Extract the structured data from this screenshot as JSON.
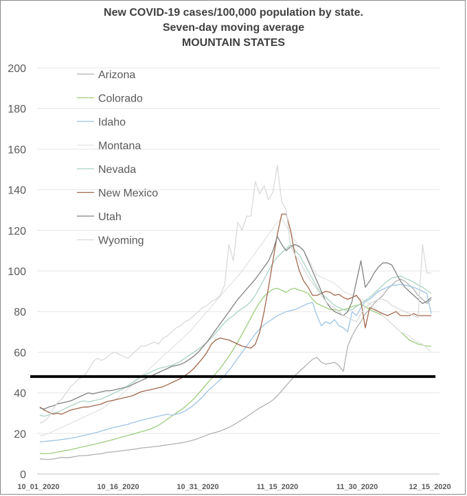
{
  "chart_data": {
    "type": "line",
    "title": [
      "New COVID-19 cases/100,000 population by state.",
      "Seven-day moving average",
      "MOUNTAIN STATES"
    ],
    "xlabel": "",
    "ylabel": "",
    "ylim": [
      0,
      200
    ],
    "yticks": [
      0,
      20,
      40,
      60,
      80,
      100,
      120,
      140,
      160,
      180,
      200
    ],
    "xticks": [
      "10_01_2020",
      "10_16_2020",
      "10_31_2020",
      "11_15_2020",
      "11_30_2020",
      "12_15_2020"
    ],
    "grid": true,
    "legend_position": "top-left",
    "reference_line": 48,
    "series": [
      {
        "name": "Arizona",
        "color": "#b0b0b0",
        "values": [
          7.5,
          7.3,
          7.2,
          7.4,
          7.8,
          8.2,
          8.0,
          8.2,
          8.6,
          9.0,
          9.0,
          9.2,
          9.6,
          9.8,
          10.0,
          10.6,
          10.8,
          11.0,
          11.3,
          11.6,
          11.8,
          12.1,
          12.4,
          12.8,
          13.0,
          13.2,
          13.5,
          13.7,
          14.1,
          14.4,
          14.7,
          15.0,
          15.3,
          15.7,
          16.2,
          16.8,
          17.5,
          18.3,
          19.2,
          20.0,
          20.5,
          21.2,
          22.0,
          23.0,
          24.2,
          25.5,
          26.8,
          28.2,
          29.7,
          31.2,
          32.6,
          33.8,
          35.0,
          36.5,
          38.5,
          41.0,
          43.5,
          46.0,
          48.5,
          50.5,
          52.5,
          54.5,
          56.5,
          57.5,
          55.0,
          54.2,
          54.5,
          55.0,
          53.5,
          50.5,
          63.0,
          68.0,
          72.0,
          75.0,
          79.0,
          81.0,
          84.0,
          86.0,
          88.0,
          91.0,
          93.0,
          95.0,
          96.0,
          95.0,
          93.0,
          91.0,
          88.0,
          86.0,
          84.0,
          86.0
        ]
      },
      {
        "name": "Colorado",
        "color": "#9ccc7c",
        "values": [
          10.2,
          10.0,
          10.1,
          10.4,
          10.8,
          11.2,
          11.6,
          12.0,
          12.5,
          13.0,
          13.5,
          14.0,
          14.5,
          15.0,
          15.5,
          16.0,
          16.6,
          17.2,
          17.8,
          18.4,
          19.0,
          19.6,
          20.2,
          20.8,
          21.4,
          22.0,
          23.0,
          24.0,
          25.5,
          27.0,
          28.5,
          30.0,
          31.5,
          33.0,
          35.0,
          37.0,
          39.5,
          42.0,
          44.5,
          47.0,
          49.5,
          52.0,
          55.0,
          58.0,
          61.5,
          65.0,
          69.0,
          73.0,
          77.0,
          81.0,
          84.5,
          87.5,
          89.5,
          91.0,
          91.5,
          90.5,
          89.5,
          91.0,
          91.5,
          90.5,
          90.0,
          89.0,
          86.0,
          84.0,
          83.0,
          82.0,
          81.0,
          81.0,
          80.5,
          81.0,
          81.5,
          82.5,
          83.0,
          83.5,
          82.5,
          81.0,
          80.0,
          79.0,
          78.0,
          76.0,
          74.0,
          72.0,
          70.0,
          68.0,
          66.0,
          65.0,
          64.0,
          63.5,
          63.0,
          63.0
        ]
      },
      {
        "name": "Idaho",
        "color": "#9dc3e6",
        "values": [
          15.8,
          16.0,
          16.3,
          16.5,
          16.7,
          17.0,
          17.3,
          17.6,
          18.0,
          18.5,
          19.0,
          19.5,
          20.0,
          20.5,
          21.2,
          21.8,
          22.5,
          23.0,
          23.5,
          24.0,
          24.5,
          25.2,
          25.8,
          26.4,
          27.0,
          27.5,
          28.0,
          28.5,
          29.0,
          29.5,
          29.0,
          29.5,
          30.0,
          31.0,
          32.5,
          34.0,
          36.0,
          38.0,
          40.5,
          42.5,
          44.5,
          46.5,
          48.5,
          51.0,
          54.0,
          57.0,
          60.0,
          63.0,
          66.0,
          69.0,
          71.5,
          73.5,
          75.0,
          76.5,
          78.0,
          79.0,
          80.0,
          80.5,
          81.0,
          82.0,
          83.0,
          84.0,
          84.5,
          78.0,
          73.0,
          75.0,
          74.0,
          76.0,
          73.0,
          72.0,
          70.0,
          80.0,
          78.0,
          82.0,
          85.0,
          86.0,
          88.0,
          90.0,
          91.0,
          92.0,
          93.0,
          93.0,
          93.5,
          93.0,
          92.5,
          92.0,
          91.0,
          90.0,
          89.0,
          79.0
        ]
      },
      {
        "name": "Montana",
        "color": "#e3e3e3",
        "values": [
          19.0,
          19.2,
          20.0,
          21.0,
          22.0,
          23.0,
          24.0,
          25.0,
          26.0,
          27.0,
          28.0,
          29.0,
          30.0,
          31.0,
          32.0,
          33.5,
          35.0,
          36.5,
          38.0,
          40.0,
          42.0,
          44.0,
          46.0,
          48.0,
          50.0,
          52.0,
          54.0,
          56.0,
          58.0,
          60.0,
          62.0,
          64.0,
          66.0,
          68.0,
          70.0,
          72.5,
          75.0,
          77.5,
          80.0,
          82.5,
          85.0,
          87.5,
          90.0,
          92.5,
          95.0,
          97.5,
          100.0,
          103.0,
          106.0,
          109.0,
          112.0,
          115.0,
          118.0,
          121.0,
          124.0,
          126.0,
          122.0,
          119.0,
          115.0,
          112.0,
          110.0,
          106.0,
          102.0,
          98.0,
          97.0,
          96.0,
          95.0,
          94.0,
          92.0,
          90.0,
          89.0,
          88.0,
          87.0,
          86.0,
          85.0,
          84.0,
          82.0,
          80.0,
          78.0,
          76.0,
          74.0,
          72.0,
          70.0,
          69.0,
          68.0,
          66.0,
          65.0,
          64.0,
          62.0,
          60.0
        ]
      },
      {
        "name": "Nevada",
        "color": "#a9d3c2",
        "values": [
          29.0,
          28.5,
          29.0,
          30.0,
          30.5,
          31.5,
          32.5,
          33.5,
          34.5,
          35.5,
          36.0,
          35.5,
          36.0,
          36.5,
          37.0,
          38.0,
          39.0,
          40.0,
          41.0,
          42.0,
          43.5,
          45.0,
          46.5,
          48.0,
          49.0,
          50.0,
          51.0,
          52.0,
          52.5,
          53.0,
          53.5,
          54.5,
          55.5,
          57.0,
          58.5,
          60.0,
          61.5,
          63.0,
          65.0,
          67.0,
          69.5,
          72.0,
          74.5,
          76.5,
          78.0,
          80.0,
          81.5,
          83.0,
          85.0,
          88.0,
          92.0,
          96.0,
          100.0,
          104.0,
          107.0,
          109.0,
          111.0,
          113.0,
          110.0,
          108.0,
          104.0,
          100.0,
          96.0,
          92.0,
          89.0,
          87.0,
          85.0,
          83.0,
          82.0,
          81.0,
          80.5,
          81.0,
          82.5,
          84.0,
          85.5,
          87.0,
          89.0,
          91.0,
          93.0,
          95.0,
          96.5,
          97.0,
          97.5,
          96.5,
          95.5,
          94.5,
          93.0,
          92.0,
          90.5,
          89.0
        ]
      },
      {
        "name": "New Mexico",
        "color": "#a0664a",
        "values": [
          33.0,
          31.5,
          30.5,
          29.5,
          30.0,
          29.5,
          30.5,
          31.5,
          32.0,
          32.5,
          33.0,
          33.0,
          33.5,
          34.0,
          34.5,
          35.5,
          36.0,
          36.5,
          37.0,
          37.5,
          38.0,
          38.5,
          39.5,
          40.5,
          41.0,
          41.5,
          42.0,
          42.5,
          43.0,
          44.0,
          45.0,
          46.0,
          47.0,
          48.5,
          50.0,
          52.0,
          54.5,
          57.0,
          60.0,
          64.0,
          66.0,
          67.0,
          66.5,
          66.0,
          65.0,
          64.0,
          63.0,
          62.5,
          62.0,
          64.0,
          70.0,
          80.0,
          92.0,
          105.0,
          118.0,
          128.0,
          128.0,
          120.0,
          108.0,
          100.0,
          95.0,
          92.0,
          88.0,
          88.0,
          89.0,
          90.0,
          89.5,
          88.0,
          88.5,
          87.0,
          86.0,
          87.0,
          88.0,
          85.0,
          72.0,
          82.0,
          81.0,
          80.0,
          79.0,
          78.0,
          79.0,
          80.0,
          78.0,
          78.0,
          78.0,
          79.0,
          78.0,
          78.0,
          78.0,
          78.0
        ]
      },
      {
        "name": "Utah",
        "color": "#808080",
        "values": [
          32.5,
          32.0,
          33.0,
          33.5,
          34.5,
          35.0,
          35.5,
          36.0,
          37.0,
          38.0,
          39.0,
          40.0,
          39.5,
          40.0,
          40.5,
          41.0,
          41.0,
          41.5,
          42.0,
          42.5,
          43.0,
          44.0,
          45.0,
          46.0,
          47.0,
          48.0,
          49.0,
          50.0,
          51.0,
          52.0,
          53.0,
          53.5,
          54.0,
          55.0,
          56.5,
          58.0,
          60.0,
          62.5,
          65.0,
          68.0,
          71.0,
          74.0,
          77.0,
          80.0,
          83.0,
          86.0,
          88.5,
          91.0,
          93.5,
          96.0,
          99.0,
          102.0,
          105.0,
          110.0,
          117.0,
          113.0,
          110.0,
          112.0,
          113.0,
          112.0,
          110.0,
          105.0,
          100.0,
          95.0,
          90.0,
          85.0,
          82.0,
          80.0,
          79.0,
          78.0,
          80.0,
          85.0,
          95.0,
          105.0,
          92.0,
          95.0,
          99.0,
          102.0,
          104.0,
          104.0,
          103.0,
          99.0,
          95.0,
          92.0,
          90.0,
          88.0,
          86.0,
          84.0,
          85.0,
          87.0
        ]
      },
      {
        "name": "Wyoming",
        "color": "#d9d9d9",
        "values": [
          25.0,
          26.0,
          28.0,
          32.0,
          35.0,
          37.0,
          40.0,
          43.0,
          45.0,
          47.0,
          48.0,
          51.0,
          55.0,
          57.0,
          56.0,
          57.0,
          59.0,
          60.0,
          59.0,
          58.0,
          57.0,
          59.0,
          61.0,
          63.0,
          63.0,
          64.0,
          65.0,
          64.0,
          67.0,
          68.0,
          70.0,
          72.0,
          73.0,
          75.0,
          76.0,
          78.0,
          80.0,
          82.0,
          83.0,
          85.0,
          86.0,
          88.0,
          93.0,
          113.0,
          105.0,
          124.0,
          120.0,
          127.0,
          127.0,
          144.0,
          138.0,
          142.0,
          135.0,
          139.0,
          152.0,
          134.0,
          130.0,
          112.0,
          108.0,
          105.0,
          101.0,
          97.0,
          94.0,
          91.0,
          88.0,
          85.0,
          83.0,
          82.0,
          80.0,
          78.0,
          77.0,
          76.0,
          75.0,
          79.0,
          82.0,
          84.0,
          85.0,
          86.0,
          86.0,
          85.0,
          83.0,
          82.0,
          81.0,
          80.0,
          79.0,
          78.0,
          77.0,
          113.0,
          99.0,
          99.0
        ]
      }
    ]
  }
}
